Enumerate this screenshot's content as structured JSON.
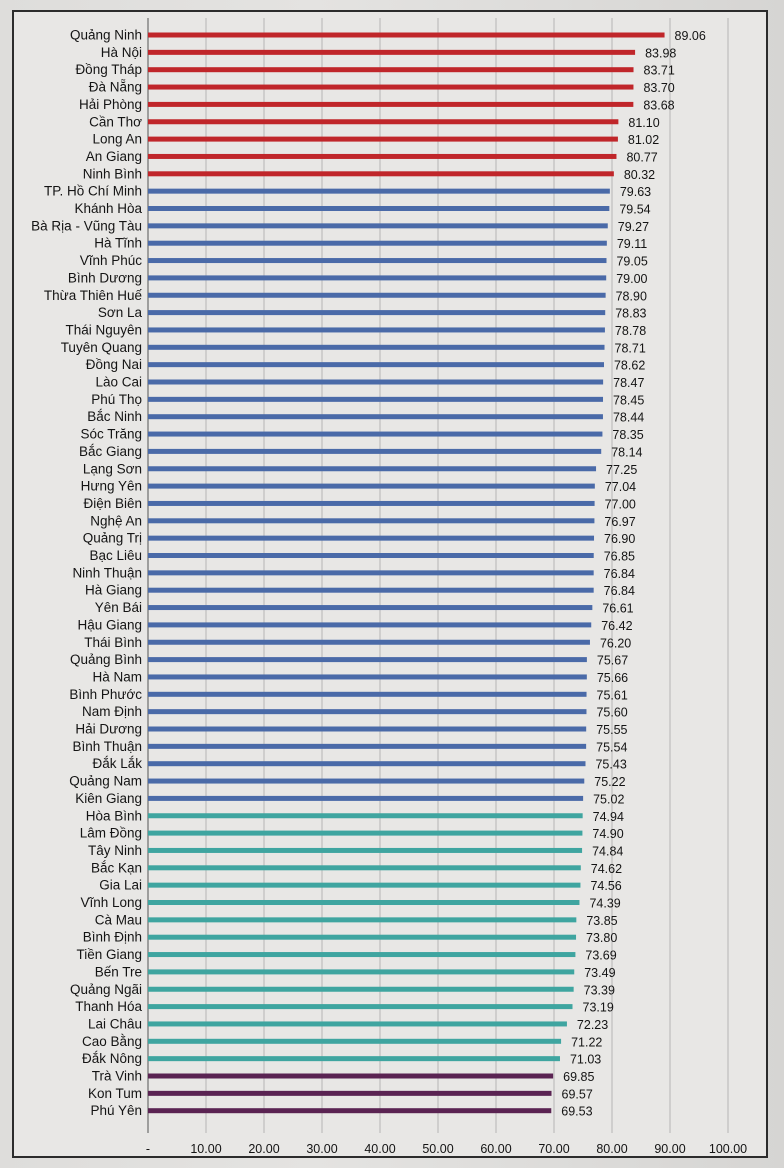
{
  "chart_data": {
    "type": "bar",
    "orientation": "horizontal",
    "title": "",
    "xlabel": "",
    "ylabel": "",
    "xlim": [
      0,
      100
    ],
    "grid": "vertical",
    "x_ticks": [
      "-",
      "10.00",
      "20.00",
      "30.00",
      "40.00",
      "50.00",
      "60.00",
      "70.00",
      "80.00",
      "90.00",
      "100.00"
    ],
    "colors": {
      "top": "#c0262a",
      "upper": "#4a6aa8",
      "middle": "#3fa5a0",
      "bottom": "#5a2352"
    },
    "categories": [
      "Quảng Ninh",
      "Hà Nội",
      "Đồng Tháp",
      "Đà Nẵng",
      "Hải Phòng",
      "Cần Thơ",
      "Long An",
      "An Giang",
      "Ninh Bình",
      "TP. Hồ Chí Minh",
      "Khánh Hòa",
      "Bà Rịa - Vũng Tàu",
      "Hà Tĩnh",
      "Vĩnh Phúc",
      "Bình Dương",
      "Thừa Thiên Huế",
      "Sơn La",
      "Thái Nguyên",
      "Tuyên Quang",
      "Đồng Nai",
      "Lào Cai",
      "Phú Thọ",
      "Bắc Ninh",
      "Sóc Trăng",
      "Bắc Giang",
      "Lạng Sơn",
      "Hưng Yên",
      "Điện Biên",
      "Nghệ An",
      "Quảng Trị",
      "Bạc Liêu",
      "Ninh Thuận",
      "Hà Giang",
      "Yên Bái",
      "Hậu Giang",
      "Thái Bình",
      "Quảng Bình",
      "Hà Nam",
      "Bình Phước",
      "Nam Định",
      "Hải Dương",
      "Bình Thuận",
      "Đắk Lắk",
      "Quảng Nam",
      "Kiên Giang",
      "Hòa Bình",
      "Lâm Đồng",
      "Tây Ninh",
      "Bắc Kạn",
      "Gia Lai",
      "Vĩnh Long",
      "Cà Mau",
      "Bình Định",
      "Tiền Giang",
      "Bến Tre",
      "Quảng Ngãi",
      "Thanh Hóa",
      "Lai Châu",
      "Cao Bằng",
      "Đắk Nông",
      "Trà Vinh",
      "Kon Tum",
      "Phú Yên"
    ],
    "values": [
      89.06,
      83.98,
      83.71,
      83.7,
      83.68,
      81.1,
      81.02,
      80.77,
      80.32,
      79.63,
      79.54,
      79.27,
      79.11,
      79.05,
      79.0,
      78.9,
      78.83,
      78.78,
      78.71,
      78.62,
      78.47,
      78.45,
      78.44,
      78.35,
      78.14,
      77.25,
      77.04,
      77.0,
      76.97,
      76.9,
      76.85,
      76.84,
      76.84,
      76.61,
      76.42,
      76.2,
      75.67,
      75.66,
      75.61,
      75.6,
      75.55,
      75.54,
      75.43,
      75.22,
      75.02,
      74.94,
      74.9,
      74.84,
      74.62,
      74.56,
      74.39,
      73.85,
      73.8,
      73.69,
      73.49,
      73.39,
      73.19,
      72.23,
      71.22,
      71.03,
      69.85,
      69.57,
      69.53
    ],
    "value_labels": [
      "89.06",
      "83.98",
      "83.71",
      "83.70",
      "83.68",
      "81.10",
      "81.02",
      "80.77",
      "80.32",
      "79.63",
      "79.54",
      "79.27",
      "79.11",
      "79.05",
      "79.00",
      "78.90",
      "78.83",
      "78.78",
      "78.71",
      "78.62",
      "78.47",
      "78.45",
      "78.44",
      "78.35",
      "78.14",
      "77.25",
      "77.04",
      "77.00",
      "76.97",
      "76.90",
      "76.85",
      "76.84",
      "76.84",
      "76.61",
      "76.42",
      "76.20",
      "75.67",
      "75.66",
      "75.61",
      "75.60",
      "75.55",
      "75.54",
      "75.43",
      "75.22",
      "75.02",
      "74.94",
      "74.90",
      "74.84",
      "74.62",
      "74.56",
      "74.39",
      "73.85",
      "73.80",
      "73.69",
      "73.49",
      "73.39",
      "73.19",
      "72.23",
      "71.22",
      "71.03",
      "69.85",
      "69.57",
      "69.53"
    ]
  }
}
